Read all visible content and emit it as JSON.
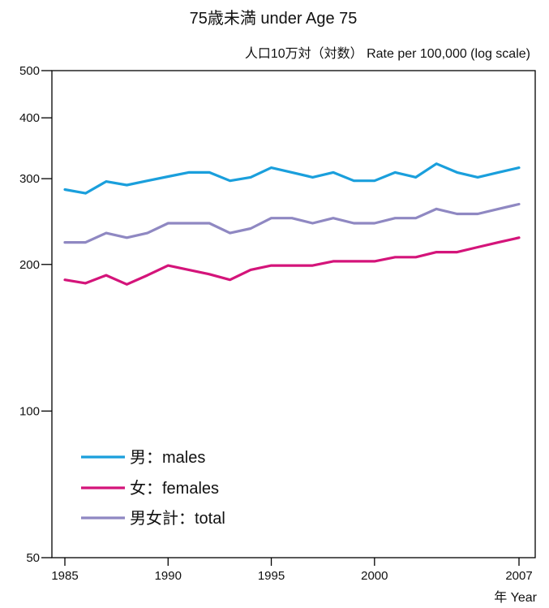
{
  "chart_data": {
    "type": "line",
    "title": "75歳未満  under Age 75",
    "ylabel": "人口10万対（対数） Rate per 100,000 (log scale)",
    "xlabel": "年  Year",
    "yscale": "log",
    "ylim": [
      50,
      500
    ],
    "xlim": [
      1985,
      2007
    ],
    "y_ticks": [
      50,
      100,
      200,
      300,
      400,
      500
    ],
    "y_tick_labels": [
      "50",
      "100",
      "200",
      "300",
      "400",
      "500"
    ],
    "x_ticks": [
      1985,
      1990,
      1995,
      2000,
      2007
    ],
    "x_tick_labels": [
      "1985",
      "1990",
      "1995",
      "2000",
      "2007"
    ],
    "x": [
      1985,
      1986,
      1987,
      1988,
      1989,
      1990,
      1991,
      1992,
      1993,
      1994,
      1995,
      1996,
      1997,
      1998,
      1999,
      2000,
      2001,
      2002,
      2003,
      2004,
      2005,
      2006,
      2007
    ],
    "series": [
      {
        "name": "男：males",
        "color": "#1a9fdc",
        "values": [
          285,
          280,
          296,
          291,
          297,
          303,
          309,
          309,
          297,
          302,
          316,
          309,
          302,
          309,
          297,
          297,
          309,
          302,
          322,
          309,
          302,
          309,
          316
        ]
      },
      {
        "name": "女：females",
        "color": "#d4147a",
        "values": [
          186,
          183,
          190,
          182,
          190,
          199,
          195,
          191,
          186,
          195,
          199,
          199,
          199,
          203,
          203,
          203,
          207,
          207,
          212,
          212,
          217,
          222,
          227
        ]
      },
      {
        "name": "男女計：total",
        "color": "#8f88c2",
        "values": [
          222,
          222,
          232,
          227,
          232,
          243,
          243,
          243,
          232,
          237,
          249,
          249,
          243,
          249,
          243,
          243,
          249,
          249,
          260,
          254,
          254,
          260,
          266
        ]
      }
    ],
    "legend_position": "bottom-left",
    "grid": false
  }
}
